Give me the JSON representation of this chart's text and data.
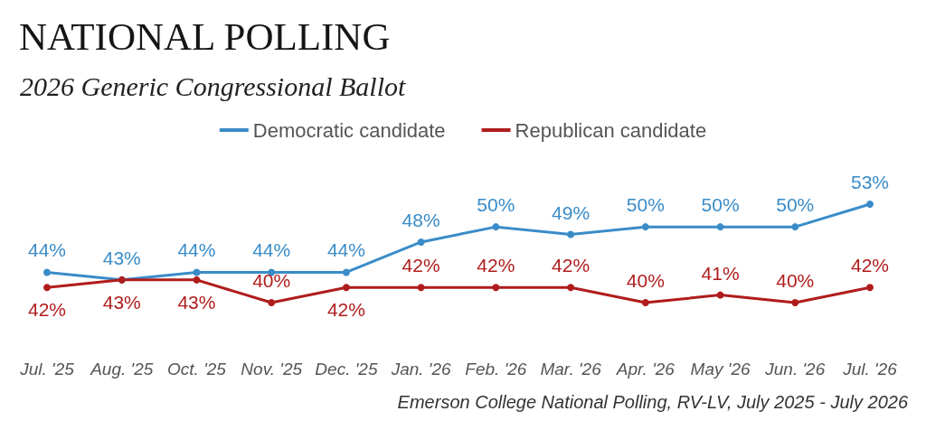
{
  "chart_data": {
    "type": "line",
    "title": "NATIONAL POLLING",
    "subtitle": "2026 Generic Congressional Ballot",
    "categories": [
      "Jul. '25",
      "Aug. '25",
      "Oct. '25",
      "Nov. '25",
      "Dec. '25",
      "Jan. '26",
      "Feb. '26",
      "Mar. '26",
      "Apr. '26",
      "May '26",
      "Jun. '26",
      "Jul. '26"
    ],
    "series": [
      {
        "name": "Democratic candidate",
        "color": "#3a8cc8",
        "values": [
          44,
          43,
          44,
          44,
          44,
          48,
          50,
          49,
          50,
          50,
          50,
          53
        ],
        "value_labels": [
          "44%",
          "43%",
          "44%",
          "44%",
          "44%",
          "48%",
          "50%",
          "49%",
          "50%",
          "50%",
          "50%",
          "53%"
        ]
      },
      {
        "name": "Republican candidate",
        "color": "#b01c1c",
        "values": [
          42,
          43,
          43,
          40,
          42,
          42,
          42,
          42,
          40,
          41,
          40,
          42
        ],
        "value_labels": [
          "42%",
          "43%",
          "43%",
          "40%",
          "42%",
          "42%",
          "42%",
          "42%",
          "40%",
          "41%",
          "40%",
          "42%"
        ]
      }
    ],
    "legend": "top",
    "marker": "circle",
    "line_style": "solid",
    "annotations": [
      "Emerson College National Polling, RV-LV, July 2025 - July 2026"
    ]
  }
}
